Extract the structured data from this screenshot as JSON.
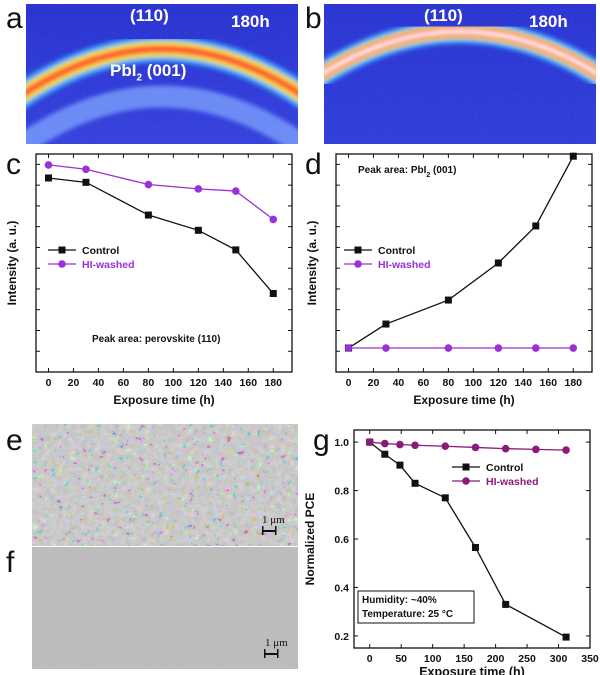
{
  "panels": {
    "a": {
      "letter": "a",
      "peak_label": "(110)",
      "time_label": "180h",
      "pbi2_label": "PbI",
      "pbi2_sub": "2",
      "pbi2_suffix": " (001)"
    },
    "b": {
      "letter": "b",
      "peak_label": "(110)",
      "time_label": "180h"
    },
    "e": {
      "letter": "e",
      "scale_label": "1 μm"
    },
    "f": {
      "letter": "f",
      "scale_label": "1 μm"
    }
  },
  "chart_data": [
    {
      "panel": "c",
      "type": "line",
      "xlabel": "Exposure time (h)",
      "ylabel": "Intensity (a. u.)",
      "xlim": [
        -10,
        195
      ],
      "ylim": [
        0,
        100
      ],
      "xticks": [
        0,
        20,
        40,
        60,
        80,
        100,
        120,
        140,
        160,
        180
      ],
      "y_tick_labels_shown": false,
      "annotation": "Peak area: perovskite  (110)",
      "legend_position": "left",
      "series": [
        {
          "name": "Control",
          "color": "#111111",
          "marker": "square",
          "x": [
            0,
            30,
            80,
            120,
            150,
            180
          ],
          "y": [
            89,
            87,
            72,
            65,
            56,
            36
          ]
        },
        {
          "name": "HI-washed",
          "color": "#9b30d9",
          "marker": "circle",
          "x": [
            0,
            30,
            80,
            120,
            150,
            180
          ],
          "y": [
            95,
            93,
            86,
            84,
            83,
            70
          ]
        }
      ]
    },
    {
      "panel": "d",
      "type": "line",
      "xlabel": "Exposure time (h)",
      "ylabel": "Intensity (a. u.)",
      "xlim": [
        -10,
        195
      ],
      "ylim": [
        0,
        100
      ],
      "xticks": [
        0,
        20,
        40,
        60,
        80,
        100,
        120,
        140,
        160,
        180
      ],
      "y_tick_labels_shown": false,
      "annotation": "Peak area: PbI2 (001)",
      "legend_position": "left",
      "series": [
        {
          "name": "Control",
          "color": "#111111",
          "marker": "square",
          "x": [
            0,
            30,
            80,
            120,
            150,
            180
          ],
          "y": [
            11,
            22,
            33,
            50,
            67,
            99
          ]
        },
        {
          "name": "HI-washed",
          "color": "#9b30d9",
          "marker": "circle",
          "x": [
            0,
            30,
            80,
            120,
            150,
            180
          ],
          "y": [
            11,
            11,
            11,
            11,
            11,
            11
          ]
        }
      ]
    },
    {
      "panel": "g",
      "type": "line",
      "xlabel": "Exposure time (h)",
      "ylabel": "Normalized PCE",
      "xlim": [
        -25,
        350
      ],
      "ylim": [
        0.15,
        1.05
      ],
      "xticks": [
        0,
        50,
        100,
        150,
        200,
        250,
        300,
        350
      ],
      "yticks": [
        0.2,
        0.4,
        0.6,
        0.8,
        1.0
      ],
      "annotation_lines": [
        "Humidity: ~40%",
        "Temperature: 25 °C"
      ],
      "legend_position": "right",
      "series": [
        {
          "name": "Control",
          "color": "#111111",
          "marker": "square",
          "x": [
            0,
            24,
            48,
            72,
            120,
            168,
            216,
            312
          ],
          "y": [
            1.0,
            0.95,
            0.905,
            0.83,
            0.77,
            0.565,
            0.33,
            0.195
          ]
        },
        {
          "name": "HI-washed",
          "color": "#8b1a7a",
          "marker": "circle",
          "x": [
            0,
            24,
            48,
            72,
            120,
            168,
            216,
            264,
            312
          ],
          "y": [
            1.0,
            0.994,
            0.99,
            0.987,
            0.983,
            0.978,
            0.973,
            0.97,
            0.967
          ]
        }
      ]
    }
  ]
}
